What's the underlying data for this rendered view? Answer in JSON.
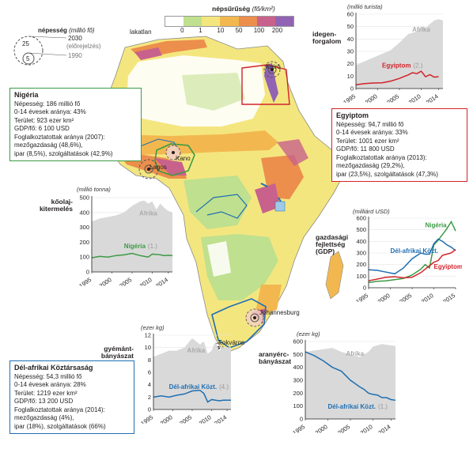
{
  "density_legend": {
    "title": "népsűrűség",
    "unit": "(fő/km²)",
    "lakatlan": "lakatlan",
    "ticks": [
      "0",
      "1",
      "10",
      "50",
      "100",
      "200"
    ],
    "colors": [
      "#ffffff",
      "#bfe08e",
      "#f4e67f",
      "#f2b84f",
      "#ec8e4c",
      "#c8628c",
      "#9163b4"
    ]
  },
  "pop_legend": {
    "title": "népesség",
    "unit": "(millió fő)",
    "big_value": "25",
    "small_value": "5",
    "year_2030": "2030",
    "note_2030": "(előrejelzés)",
    "year_1990": "1990"
  },
  "cities": {
    "kairo": "Kairó",
    "kano": "Kano",
    "lagos": "Lagos",
    "johannesburg": "Johannesburg",
    "fokvaros": "Fokváros"
  },
  "nigeria_box": {
    "title": "Nigéria",
    "lines": [
      "Népesség: 186 millió fő",
      "0-14 évesek aránya: 43%",
      "Terület: 923 ezer km²",
      "GDP/fő: 6 100 USD",
      "Foglalkoztatottak aránya (2007):",
      "mezőgazdaság (48,6%),",
      "ipar (8,5%), szolgáltatások (42,9%)"
    ],
    "border_color": "#3c9a45"
  },
  "egypt_box": {
    "title": "Egyiptom",
    "lines": [
      "Népesség: 94,7 millió fő",
      "0-14 évesek aránya: 33%",
      "Terület: 1001 ezer km²",
      "GDP/fő: 11 800 USD",
      "Foglalkoztatottak aránya (2013):",
      "mezőgazdaság (29,2%),",
      "ipar (23,5%), szolgáltatások (47,3%)"
    ],
    "border_color": "#d2232a"
  },
  "sa_box": {
    "title": "Dél-afrikai Köztársaság",
    "lines": [
      "Népesség: 54,3 millió fő",
      "0-14 évesek aránya: 28%",
      "Terület: 1219 ezer km²",
      "GDP/fő: 13 200 USD",
      "Foglalkoztatottak aránya (2014):",
      "mezőgazdaság (4%),",
      "ipar (18%), szolgáltatások (66%)"
    ],
    "border_color": "#1f6fb2"
  },
  "chart_labels": {
    "tourism_label": "idegen-\nforgalom",
    "tourism_unit": "(millió turista)",
    "oil_label": "kőolaj-\nkitermelés",
    "oil_unit": "(millió tonna)",
    "gdp_label": "gazdasági\nfejlettség\n(GDP)",
    "gdp_unit": "(milliárd USD)",
    "diamond_label": "gyémánt-\nbányászat",
    "diamond_unit": "(ezer kg)",
    "gold_label": "aranyérc-\nbányászat",
    "gold_unit": "(ezer kg)"
  },
  "chart_data": [
    {
      "type": "area",
      "id": "tourism",
      "title": "",
      "xlabel": "",
      "ylabel": "",
      "xlim": [
        1995,
        2015
      ],
      "ylim": [
        0,
        60
      ],
      "x_ticks": [
        1995,
        2000,
        2005,
        2010,
        2014
      ],
      "y_ticks": [
        0,
        10,
        20,
        30,
        40,
        50,
        60
      ],
      "series": [
        {
          "name": "Afrika",
          "kind": "area",
          "color": "#d9d9d9",
          "x": [
            1995,
            1997,
            1999,
            2001,
            2003,
            2005,
            2007,
            2008,
            2009,
            2010,
            2011,
            2012,
            2013,
            2014,
            2015
          ],
          "values": [
            19,
            22,
            25,
            28,
            31,
            37,
            44,
            45,
            46,
            50,
            49,
            52,
            55,
            56,
            55
          ]
        },
        {
          "name": "Egyiptom",
          "rank": "(2.)",
          "kind": "line",
          "color": "#d2232a",
          "x": [
            1995,
            1997,
            1999,
            2001,
            2003,
            2005,
            2007,
            2008,
            2009,
            2010,
            2011,
            2012,
            2013,
            2014
          ],
          "values": [
            3,
            4,
            4.5,
            4.6,
            6,
            8.2,
            11,
            12.8,
            12,
            14,
            9.5,
            11.2,
            9.2,
            9.6
          ]
        }
      ]
    },
    {
      "type": "area",
      "id": "oil",
      "title": "",
      "xlabel": "",
      "ylabel": "",
      "xlim": [
        1995,
        2015
      ],
      "ylim": [
        0,
        500
      ],
      "x_ticks": [
        1995,
        2000,
        2005,
        2010,
        2014
      ],
      "y_ticks": [
        0,
        100,
        200,
        300,
        400,
        500
      ],
      "series": [
        {
          "name": "Afrika",
          "kind": "area",
          "color": "#d9d9d9",
          "x": [
            1995,
            1997,
            1999,
            2001,
            2003,
            2005,
            2007,
            2008,
            2009,
            2010,
            2011,
            2012,
            2013,
            2014,
            2015
          ],
          "values": [
            340,
            360,
            370,
            380,
            400,
            445,
            475,
            480,
            460,
            475,
            420,
            460,
            430,
            410,
            400
          ]
        },
        {
          "name": "Nigéria",
          "rank": "(1.)",
          "kind": "line",
          "color": "#3c9a45",
          "x": [
            1995,
            1997,
            1999,
            2001,
            2003,
            2005,
            2007,
            2008,
            2009,
            2010,
            2011,
            2012,
            2013,
            2014,
            2015
          ],
          "values": [
            95,
            105,
            100,
            110,
            115,
            125,
            110,
            105,
            100,
            120,
            118,
            115,
            110,
            112,
            110
          ]
        }
      ]
    },
    {
      "type": "line",
      "id": "gdp",
      "title": "",
      "xlabel": "",
      "ylabel": "",
      "xlim": [
        1995,
        2015
      ],
      "ylim": [
        0,
        600
      ],
      "x_ticks": [
        1995,
        2000,
        2005,
        2010,
        2015
      ],
      "y_ticks": [
        0,
        100,
        200,
        300,
        400,
        500,
        600
      ],
      "series": [
        {
          "name": "Nigéria",
          "color": "#3c9a45",
          "x": [
            1995,
            1997,
            1999,
            2001,
            2003,
            2005,
            2007,
            2008,
            2009,
            2010,
            2011,
            2012,
            2013,
            2014,
            2015
          ],
          "values": [
            45,
            55,
            60,
            70,
            80,
            110,
            160,
            200,
            170,
            370,
            410,
            460,
            510,
            570,
            490
          ]
        },
        {
          "name": "Dél-afrikai Közt.",
          "color": "#1f6fb2",
          "x": [
            1995,
            1997,
            1999,
            2001,
            2003,
            2005,
            2007,
            2008,
            2009,
            2010,
            2011,
            2012,
            2013,
            2014,
            2015
          ],
          "values": [
            155,
            150,
            135,
            120,
            170,
            250,
            300,
            290,
            290,
            380,
            420,
            400,
            370,
            350,
            320
          ]
        },
        {
          "name": "Egyiptom",
          "color": "#d2232a",
          "x": [
            1995,
            1997,
            1999,
            2001,
            2003,
            2005,
            2007,
            2008,
            2009,
            2010,
            2011,
            2012,
            2013,
            2014,
            2015
          ],
          "values": [
            60,
            75,
            90,
            95,
            85,
            90,
            130,
            160,
            190,
            220,
            235,
            280,
            290,
            300,
            330
          ]
        }
      ]
    },
    {
      "type": "area",
      "id": "diamond",
      "title": "",
      "xlabel": "",
      "ylabel": "",
      "xlim": [
        1995,
        2015
      ],
      "ylim": [
        0,
        12
      ],
      "x_ticks": [
        1995,
        2000,
        2005,
        2010,
        2014
      ],
      "y_ticks": [
        0,
        2,
        4,
        6,
        8,
        10,
        12
      ],
      "series": [
        {
          "name": "Afrika",
          "kind": "area",
          "color": "#d9d9d9",
          "x": [
            1995,
            1997,
            1999,
            2001,
            2003,
            2005,
            2007,
            2008,
            2009,
            2010,
            2011,
            2012,
            2013,
            2014,
            2015
          ],
          "values": [
            8.5,
            9,
            9.5,
            9.5,
            10,
            11.5,
            10.5,
            11,
            9,
            9.5,
            11,
            9.5,
            10,
            10,
            10
          ]
        },
        {
          "name": "Dél-afrikai Közt.",
          "rank": "(4.)",
          "kind": "line",
          "color": "#1f6fb2",
          "x": [
            1995,
            1997,
            1999,
            2001,
            2003,
            2005,
            2007,
            2008,
            2009,
            2010,
            2011,
            2012,
            2013,
            2014,
            2015
          ],
          "values": [
            2,
            2.2,
            2,
            2.3,
            2.5,
            3,
            3.1,
            2.6,
            1.2,
            1.6,
            1.5,
            1.4,
            1.5,
            1.5,
            1.5
          ]
        }
      ]
    },
    {
      "type": "area",
      "id": "gold",
      "title": "",
      "xlabel": "",
      "ylabel": "",
      "xlim": [
        1995,
        2015
      ],
      "ylim": [
        0,
        600
      ],
      "x_ticks": [
        1995,
        2000,
        2005,
        2010,
        2014
      ],
      "y_ticks": [
        0,
        100,
        200,
        300,
        400,
        500,
        600
      ],
      "series": [
        {
          "name": "Afrika",
          "kind": "area",
          "color": "#d9d9d9",
          "x": [
            1995,
            1997,
            1999,
            2001,
            2003,
            2005,
            2007,
            2008,
            2009,
            2010,
            2011,
            2012,
            2013,
            2014,
            2015
          ],
          "values": [
            520,
            530,
            540,
            550,
            520,
            500,
            480,
            500,
            520,
            560,
            570,
            580,
            575,
            570,
            565
          ]
        },
        {
          "name": "Dél-afrikai Közt.",
          "rank": "(1.)",
          "kind": "line",
          "color": "#1f6fb2",
          "x": [
            1995,
            1997,
            1999,
            2001,
            2003,
            2005,
            2007,
            2008,
            2009,
            2010,
            2011,
            2012,
            2013,
            2014,
            2015
          ],
          "values": [
            520,
            490,
            450,
            400,
            370,
            300,
            250,
            230,
            200,
            190,
            185,
            165,
            165,
            150,
            145
          ]
        }
      ]
    }
  ]
}
